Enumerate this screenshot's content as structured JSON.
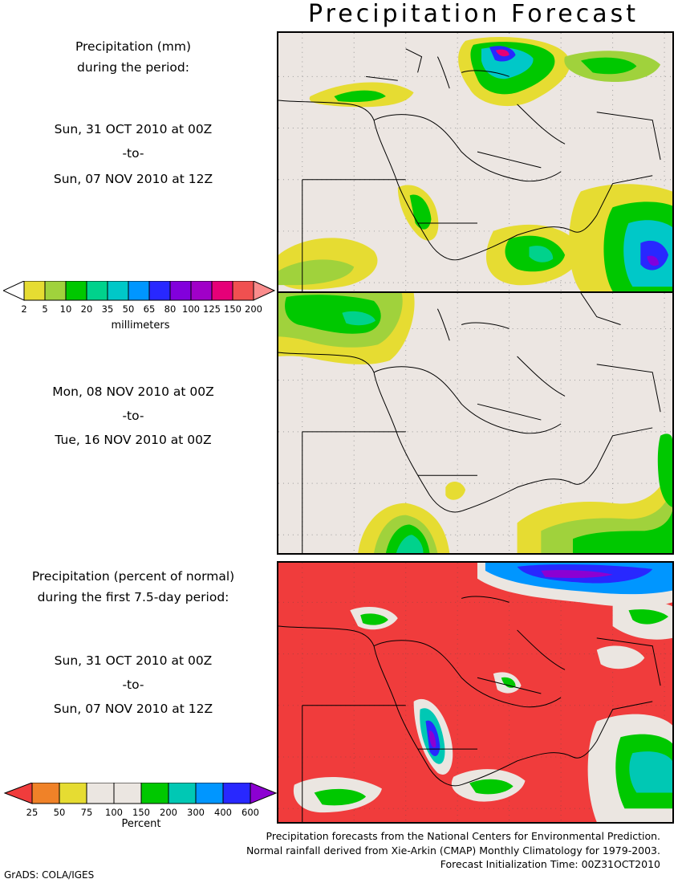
{
  "title": "Precipitation Forecast",
  "panel1": {
    "heading": [
      "Precipitation (mm)",
      "during the period:"
    ],
    "start": "Sun, 31 OCT 2010 at 00Z",
    "sep": "-to-",
    "end": "Sun, 07 NOV 2010 at 12Z"
  },
  "panel2": {
    "start": "Mon, 08 NOV 2010 at 00Z",
    "sep": "-to-",
    "end": "Tue, 16 NOV 2010 at 00Z"
  },
  "panel3": {
    "heading": [
      "Precipitation (percent of normal)",
      "during the first 7.5-day period:"
    ],
    "start": "Sun, 31 OCT 2010 at 00Z",
    "sep": "-to-",
    "end": "Sun, 07 NOV 2010 at 12Z"
  },
  "colorbar_mm": {
    "labels": [
      "2",
      "5",
      "10",
      "20",
      "35",
      "50",
      "65",
      "80",
      "100",
      "125",
      "150",
      "200"
    ],
    "title": "millimeters",
    "colors": [
      "#ffffff",
      "#e6dc32",
      "#a0d23c",
      "#00c800",
      "#00d28c",
      "#00c8c8",
      "#0096ff",
      "#2828ff",
      "#8200dc",
      "#a000c8",
      "#e60078",
      "#f05050",
      "#fa8c8c"
    ]
  },
  "colorbar_pct": {
    "labels": [
      "25",
      "50",
      "75",
      "100",
      "150",
      "200",
      "300",
      "400",
      "600"
    ],
    "title": "Percent",
    "colors": [
      "#f03c3c",
      "#f08228",
      "#e6dc32",
      "#ebe6e1",
      "#ebe6e1",
      "#00c800",
      "#00c8b4",
      "#0096ff",
      "#2828ff",
      "#8c00d2"
    ]
  },
  "credits": [
    "Precipitation forecasts from the National Centers for Environmental Prediction.",
    "Normal rainfall derived from Xie-Arkin (CMAP) Monthly Climatology for 1979-2003.",
    "Forecast Initialization Time: 00Z31OCT2010"
  ],
  "footer": "GrADS: COLA/IGES"
}
